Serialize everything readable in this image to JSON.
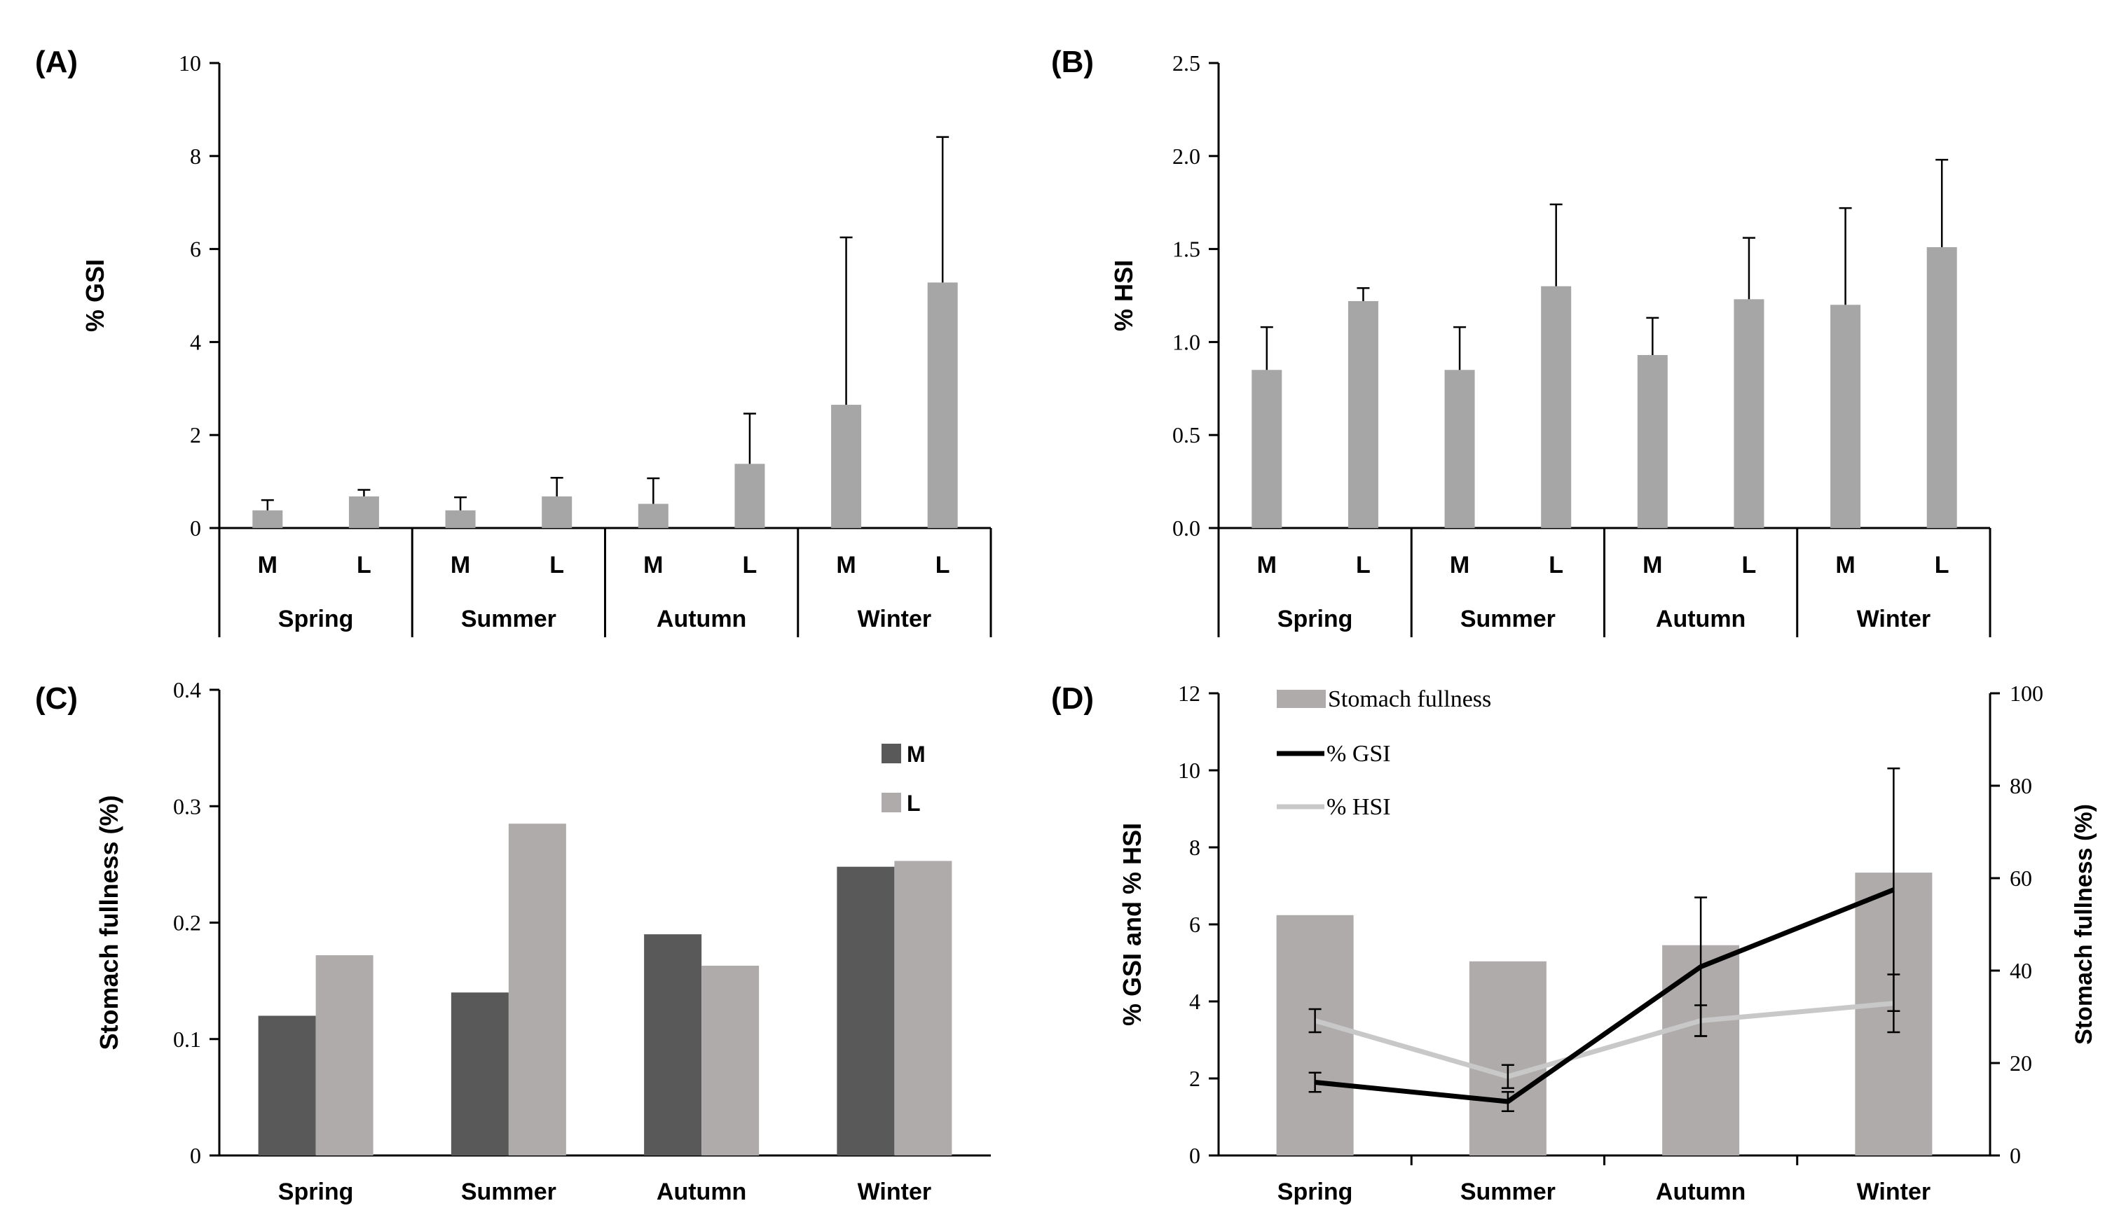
{
  "colors": {
    "bar_gray": "#a6a6a6",
    "bar_dark_M": "#595959",
    "bar_light_L": "#afabab",
    "bar_fullness_D": "#afabab",
    "line_gsi": "#000000",
    "line_hsi": "#c8c8c8",
    "axis": "#000000"
  },
  "chart_data": [
    {
      "type": "bar",
      "panel_label": "(A)",
      "ylabel": "% GSI",
      "ylim": [
        0,
        10
      ],
      "yticks": [
        "0",
        "2",
        "4",
        "6",
        "8",
        "10"
      ],
      "groups": [
        "Spring",
        "Summer",
        "Autumn",
        "Winter"
      ],
      "subcategories": [
        "M",
        "L"
      ],
      "values": [
        0.38,
        0.68,
        0.38,
        0.68,
        0.52,
        1.38,
        2.65,
        5.28
      ],
      "error_plus": [
        0.22,
        0.14,
        0.28,
        0.4,
        0.55,
        1.08,
        3.6,
        3.13
      ],
      "grid": false
    },
    {
      "type": "bar",
      "panel_label": "(B)",
      "ylabel": "% HSI",
      "ylim": [
        0,
        2.5
      ],
      "yticks": [
        "0.0",
        "0.5",
        "1.0",
        "1.5",
        "2.0",
        "2.5"
      ],
      "groups": [
        "Spring",
        "Summer",
        "Autumn",
        "Winter"
      ],
      "subcategories": [
        "M",
        "L"
      ],
      "values": [
        0.85,
        1.22,
        0.85,
        1.3,
        0.93,
        1.23,
        1.2,
        1.51
      ],
      "error_plus": [
        0.23,
        0.07,
        0.23,
        0.44,
        0.2,
        0.33,
        0.52,
        0.47
      ],
      "grid": false
    },
    {
      "type": "bar",
      "panel_label": "(C)",
      "ylabel": "Stomach fullness (%)",
      "ylim": [
        0,
        0.4
      ],
      "yticks": [
        "0",
        "0.1",
        "0.2",
        "0.3",
        "0.4"
      ],
      "categories": [
        "Spring",
        "Summer",
        "Autumn",
        "Winter"
      ],
      "series": [
        {
          "name": "M",
          "values": [
            0.12,
            0.14,
            0.19,
            0.248
          ]
        },
        {
          "name": "L",
          "values": [
            0.172,
            0.285,
            0.163,
            0.253
          ]
        }
      ],
      "legend": "top-right",
      "grid": false
    },
    {
      "type": "bar",
      "panel_label": "(D)",
      "ylabel": "% GSI and % HSI",
      "y2label": "Stomach fullness (%)",
      "ylim": [
        0,
        12
      ],
      "y2lim": [
        0,
        100
      ],
      "yticks": [
        "0",
        "2",
        "4",
        "6",
        "8",
        "10",
        "12"
      ],
      "y2ticks": [
        "0",
        "20",
        "40",
        "60",
        "80",
        "100"
      ],
      "categories": [
        "Spring",
        "Summer",
        "Autumn",
        "Winter"
      ],
      "series": [
        {
          "name": "Stomach fullness",
          "kind": "bar",
          "axis": "right",
          "values": [
            52,
            42,
            45.5,
            61.2
          ]
        },
        {
          "name": "% GSI",
          "kind": "line",
          "axis": "left",
          "values": [
            1.9,
            1.4,
            4.9,
            6.9
          ],
          "error": [
            0.25,
            0.25,
            1.8,
            3.15
          ]
        },
        {
          "name": "% HSI",
          "kind": "line",
          "axis": "left",
          "values": [
            3.5,
            2.05,
            3.5,
            3.95
          ],
          "error": [
            0.3,
            0.3,
            0.4,
            0.75
          ]
        }
      ],
      "legend": "top-left",
      "grid": false
    }
  ]
}
